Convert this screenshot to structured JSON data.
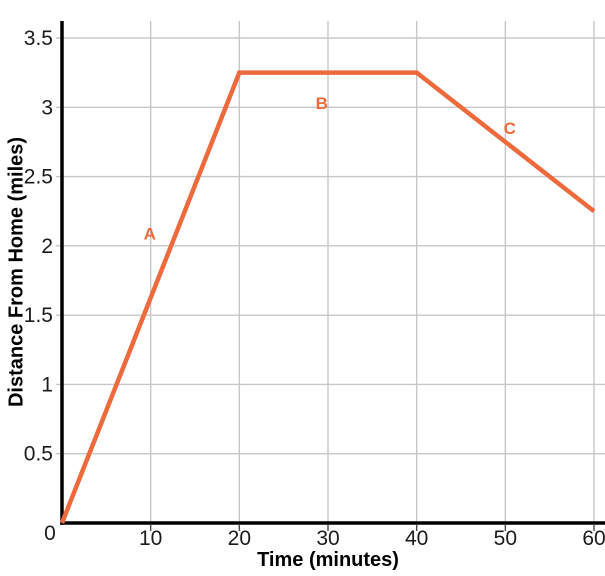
{
  "colors": {
    "line": "#ED6A3C",
    "grid": "#C7C7C7",
    "tick": "#4A4A4A",
    "axis": "#000000",
    "tick_text": "#1B1B1B"
  },
  "chart_data": {
    "type": "line",
    "title": "",
    "xlabel": "Time (minutes)",
    "ylabel": "Distance From Home (miles)",
    "x": [
      0,
      20,
      40,
      60
    ],
    "y": [
      0,
      3.25,
      3.25,
      2.25
    ],
    "series": [
      {
        "name": "distance-from-home",
        "points": [
          [
            0,
            0
          ],
          [
            20,
            3.25
          ],
          [
            40,
            3.25
          ],
          [
            60,
            2.25
          ]
        ]
      }
    ],
    "xlim": [
      0,
      60
    ],
    "ylim": [
      0,
      3.5
    ],
    "xticks": [
      0,
      10,
      20,
      30,
      40,
      50,
      60
    ],
    "yticks": [
      0.5,
      1,
      1.5,
      2,
      2.5,
      3,
      3.5
    ],
    "grid": true,
    "legend_position": "none",
    "segment_labels": [
      {
        "text": "A",
        "x": 9.9,
        "y": 2.09
      },
      {
        "text": "B",
        "x": 29.3,
        "y": 3.03
      },
      {
        "text": "C",
        "x": 50.5,
        "y": 2.85
      }
    ]
  }
}
